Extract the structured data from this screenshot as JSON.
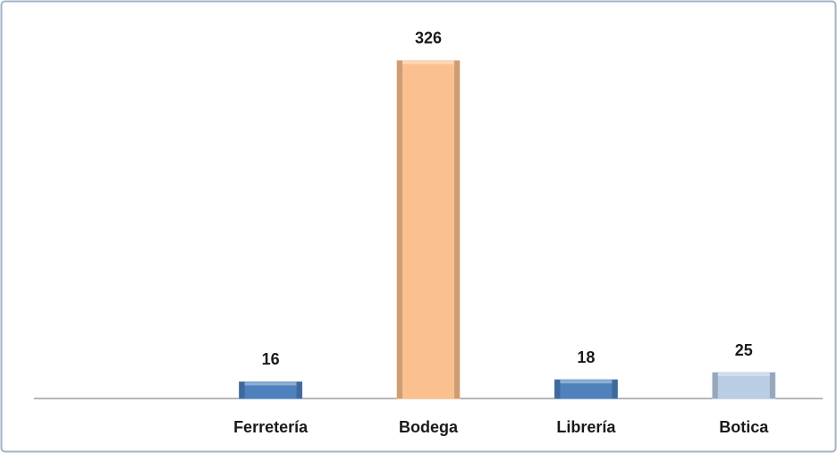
{
  "chart_data": {
    "type": "bar",
    "categories": [
      null,
      "Ferretería",
      "Bodega",
      "Librería",
      "Botica"
    ],
    "values": [
      null,
      16,
      326,
      18,
      25
    ],
    "colors": [
      null,
      "#4f81bd",
      "#fac090",
      "#4f81bd",
      "#b9cde5"
    ],
    "ylim": [
      0,
      350
    ]
  }
}
